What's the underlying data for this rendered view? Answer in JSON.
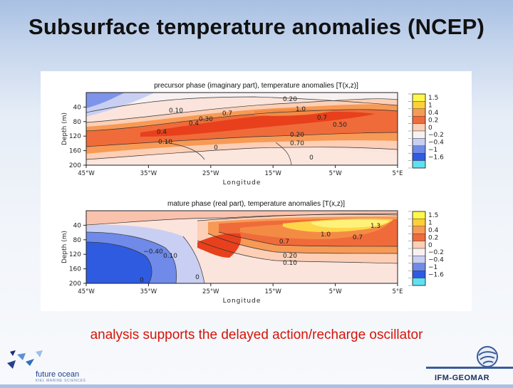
{
  "slide": {
    "title": "Subsurface temperature anomalies (NCEP)",
    "caption": "analysis supports the delayed action/recharge oscillator"
  },
  "colors": {
    "title": "#111111",
    "caption": "#d4140a",
    "warm_strong": "#e8401c",
    "warm_mid": "#f79a55",
    "warm_light": "#fccfb6",
    "neutral": "#f7f1f1",
    "cool_light": "#c9cff2",
    "cool_mid": "#6f8ae8",
    "cool_strong": "#2f5be0"
  },
  "chart_data": [
    {
      "type": "heatmap",
      "title": "precursor phase (imaginary part), temperature anomalies [T(x,z)]",
      "xlabel": "Longitude",
      "ylabel": "Depth (m)",
      "x_ticks": [
        "45°W",
        "35°W",
        "25°W",
        "15°W",
        "5°W",
        "5°E"
      ],
      "y_ticks": [
        "40",
        "80",
        "120",
        "160",
        "200"
      ],
      "ylim": [
        0,
        200
      ],
      "colorbar": {
        "levels": [
          "1.5",
          "1",
          "0.4",
          "0.2",
          "0",
          "−0.2",
          "−0.4",
          "−1",
          "−1.6"
        ],
        "colors": [
          "#fff84a",
          "#ffcf3a",
          "#f79a55",
          "#f06b3a",
          "#fccfb6",
          "#f7f1f1",
          "#c9cff2",
          "#6f8ae8",
          "#2f5be0",
          "#5fe0f0"
        ]
      },
      "contour_labels": [
        "0.20",
        "1.0",
        "0.10",
        "0.30",
        "0.7",
        "0.4",
        "0.50",
        "0.7",
        "0.4",
        "0.20",
        "0.10",
        "0.70",
        "0",
        "0"
      ]
    },
    {
      "type": "heatmap",
      "title": "mature phase (real part), temperature anomalies [T(x,z)]",
      "xlabel": "Longitude",
      "ylabel": "Depth (m)",
      "x_ticks": [
        "45°W",
        "35°W",
        "25°W",
        "15°W",
        "5°W",
        "5°E"
      ],
      "y_ticks": [
        "40",
        "80",
        "120",
        "160",
        "200"
      ],
      "ylim": [
        0,
        200
      ],
      "colorbar": {
        "levels": [
          "1.5",
          "1",
          "0.4",
          "0.2",
          "0",
          "−0.2",
          "−0.4",
          "−1",
          "−1.6"
        ],
        "colors": [
          "#fff84a",
          "#ffcf3a",
          "#f79a55",
          "#f06b3a",
          "#fccfb6",
          "#f7f1f1",
          "#c9cff2",
          "#6f8ae8",
          "#2f5be0",
          "#5fe0f0"
        ]
      },
      "contour_labels": [
        "1.3",
        "0.7",
        "1.0",
        "0.7",
        "0.20",
        "0.10",
        "−0.40",
        "0.10",
        "0",
        "0"
      ]
    }
  ],
  "logos": {
    "left_name": "future ocean",
    "left_sub": "KIEL MARINE SCIENCES",
    "right_name": "IFM-GEOMAR"
  }
}
